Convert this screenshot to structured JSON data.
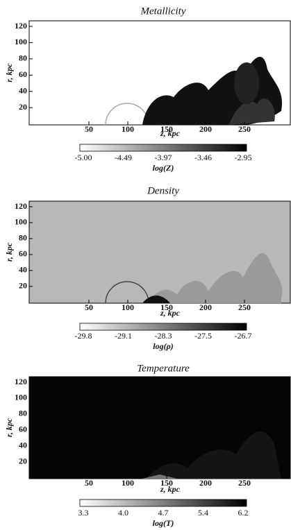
{
  "panels": [
    {
      "title": "Metallicity",
      "ylabel": "r, kpc",
      "xlabel": "z, kpc",
      "xticks": [
        "50",
        "100",
        "150",
        "200",
        "250"
      ],
      "yticks": [
        "120",
        "100",
        "80",
        "60",
        "40",
        "20"
      ],
      "colorbar": {
        "ticks": [
          "-5.00",
          "-4.49",
          "-3.97",
          "-3.46",
          "-2.95"
        ],
        "label": "log(Z)"
      }
    },
    {
      "title": "Density",
      "ylabel": "r, kpc",
      "xlabel": "z, kpc",
      "xticks": [
        "50",
        "100",
        "150",
        "200",
        "250"
      ],
      "yticks": [
        "120",
        "100",
        "80",
        "60",
        "40",
        "20"
      ],
      "colorbar": {
        "ticks": [
          "-29.8",
          "-29.1",
          "-28.3",
          "-27.5",
          "-26.7"
        ],
        "label": "log(ρ)"
      }
    },
    {
      "title": "Temperature",
      "ylabel": "r, kpc",
      "xlabel": "z, kpc",
      "xticks": [
        "50",
        "100",
        "150",
        "200",
        "250"
      ],
      "yticks": [
        "120",
        "100",
        "80",
        "60",
        "40",
        "20"
      ],
      "colorbar": {
        "ticks": [
          "3.3",
          "4.0",
          "4.7",
          "5.4",
          "6.2"
        ],
        "label": "log(T)"
      }
    }
  ]
}
